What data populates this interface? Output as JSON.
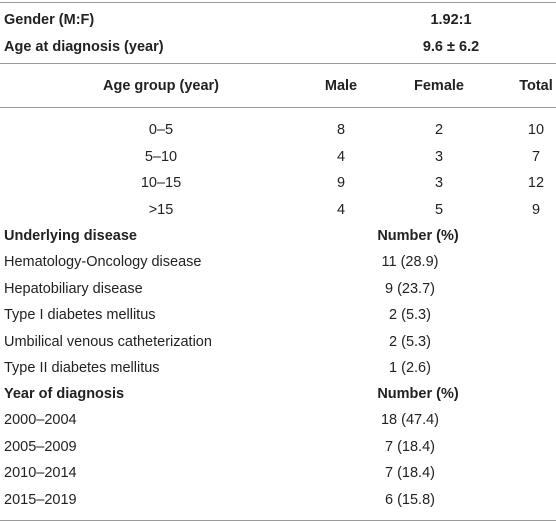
{
  "table": {
    "summary": [
      [
        "Gender (M:F)",
        "1.92:1"
      ],
      [
        "Age at diagnosis (year)",
        "9.6 ± 6.2"
      ]
    ],
    "age_header": [
      "Age group (year)",
      "Male",
      "Female",
      "Total"
    ],
    "age_rows": [
      [
        "0–5",
        "8",
        "2",
        "10"
      ],
      [
        "5–10",
        "4",
        "3",
        "7"
      ],
      [
        "10–15",
        "9",
        "3",
        "12"
      ],
      [
        ">15",
        "4",
        "5",
        "9"
      ]
    ],
    "disease_header": [
      "Underlying disease",
      "Number (%)"
    ],
    "disease_rows": [
      [
        "Hematology-Oncology disease",
        "11 (28.9)"
      ],
      [
        "Hepatobiliary disease",
        "9 (23.7)"
      ],
      [
        "Type I diabetes mellitus",
        "2 (5.3)"
      ],
      [
        "Umbilical venous catheterization",
        "2 (5.3)"
      ],
      [
        "Type II diabetes mellitus",
        "1 (2.6)"
      ]
    ],
    "year_header": [
      "Year of diagnosis",
      "Number (%)"
    ],
    "year_rows": [
      [
        "2000–2004",
        "18 (47.4)"
      ],
      [
        "2005–2009",
        "7 (18.4)"
      ],
      [
        "2010–2014",
        "7 (18.4)"
      ],
      [
        "2015–2019",
        "6 (15.8)"
      ]
    ]
  }
}
